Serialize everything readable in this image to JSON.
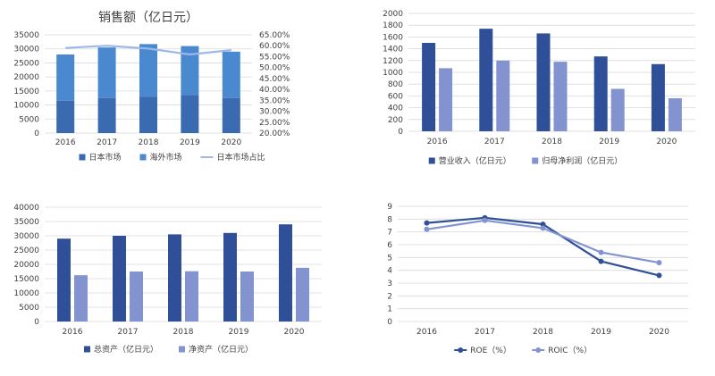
{
  "colors": {
    "navy": "#2f4f99",
    "mid_blue": "#3a6bb0",
    "bright_blue": "#4a88cf",
    "periwinkle": "#8393d0",
    "light_line": "#9bb8e6",
    "grid": "#d9d9d9",
    "axis_text": "#404040"
  },
  "chart_data": [
    {
      "type": "bar",
      "stacked": true,
      "title": "销售额（亿日元）",
      "categories": [
        "2016",
        "2017",
        "2018",
        "2019",
        "2020"
      ],
      "series": [
        {
          "name": "日本市场",
          "values": [
            11500,
            12500,
            13000,
            13500,
            12500
          ],
          "color": "#3a6bb0"
        },
        {
          "name": "海外市场",
          "values": [
            16500,
            18000,
            18700,
            17500,
            16500
          ],
          "color": "#4a88cf"
        }
      ],
      "line_series": {
        "name": "日本市场占比",
        "values": [
          59.0,
          60.0,
          58.7,
          56.0,
          58.0
        ],
        "color": "#9bb8e6",
        "axis": "right"
      },
      "ylim": [
        0,
        35000
      ],
      "yticks": [
        "0",
        "5000",
        "10000",
        "15000",
        "20000",
        "25000",
        "30000",
        "35000"
      ],
      "y2lim": [
        20,
        65
      ],
      "y2ticks": [
        "20.00%",
        "25.00%",
        "30.00%",
        "35.00%",
        "40.00%",
        "45.00%",
        "50.00%",
        "55.00%",
        "60.00%",
        "65.00%"
      ],
      "legend": [
        "日本市场",
        "海外市场",
        "日本市场占比"
      ],
      "legend_position": "bottom",
      "grid": true
    },
    {
      "type": "bar",
      "title": "",
      "categories": [
        "2016",
        "2017",
        "2018",
        "2019",
        "2020"
      ],
      "series": [
        {
          "name": "营业收入（亿日元）",
          "values": [
            1500,
            1740,
            1660,
            1270,
            1140
          ],
          "color": "#2f4f99"
        },
        {
          "name": "归母净利润（亿日元）",
          "values": [
            1070,
            1200,
            1180,
            720,
            560
          ],
          "color": "#8393d0"
        }
      ],
      "ylim": [
        0,
        2000
      ],
      "yticks": [
        "0",
        "200",
        "400",
        "600",
        "800",
        "1000",
        "1200",
        "1400",
        "1600",
        "1800",
        "2000"
      ],
      "legend": [
        "营业收入（亿日元）",
        "归母净利润（亿日元）"
      ],
      "legend_position": "bottom",
      "grid": true
    },
    {
      "type": "bar",
      "title": "",
      "categories": [
        "2016",
        "2017",
        "2018",
        "2019",
        "2020"
      ],
      "series": [
        {
          "name": "总资产（亿日元）",
          "values": [
            29000,
            30000,
            30500,
            31000,
            34000
          ],
          "color": "#2f4f99"
        },
        {
          "name": "净资产（亿日元）",
          "values": [
            16200,
            17500,
            17600,
            17500,
            18800
          ],
          "color": "#8393d0"
        }
      ],
      "ylim": [
        0,
        40000
      ],
      "yticks": [
        "0",
        "5000",
        "10000",
        "15000",
        "20000",
        "25000",
        "30000",
        "35000",
        "40000"
      ],
      "legend": [
        "总资产（亿日元）",
        "净资产（亿日元）"
      ],
      "legend_position": "bottom",
      "grid": true
    },
    {
      "type": "line",
      "title": "",
      "categories": [
        "2016",
        "2017",
        "2018",
        "2019",
        "2020"
      ],
      "series": [
        {
          "name": "ROE（%）",
          "values": [
            7.7,
            8.1,
            7.6,
            4.7,
            3.6
          ],
          "color": "#2f4f99"
        },
        {
          "name": "ROIC（%）",
          "values": [
            7.2,
            7.9,
            7.3,
            5.4,
            4.6
          ],
          "color": "#8393d0"
        }
      ],
      "ylim": [
        0,
        9
      ],
      "yticks": [
        "0",
        "1",
        "2",
        "3",
        "4",
        "5",
        "6",
        "7",
        "8",
        "9"
      ],
      "legend": [
        "ROE（%）",
        "ROIC（%）"
      ],
      "legend_position": "bottom",
      "grid": true
    }
  ]
}
